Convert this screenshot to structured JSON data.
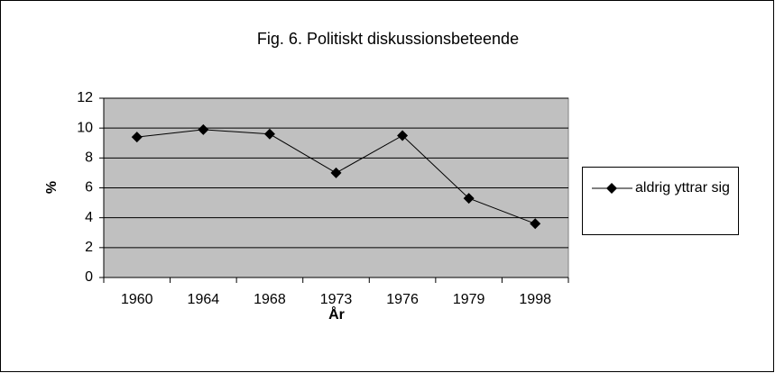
{
  "chart_data": {
    "type": "line",
    "title": "Fig. 6. Politiskt diskussionsbeteende",
    "x_label": "År",
    "y_label": "%",
    "categories": [
      "1960",
      "1964",
      "1968",
      "1973",
      "1976",
      "1979",
      "1998"
    ],
    "series": [
      {
        "name": "aldrig yttrar sig",
        "color": "#000000",
        "values": [
          9.4,
          9.9,
          9.6,
          7.0,
          9.5,
          5.3,
          3.6
        ]
      }
    ],
    "ylim": [
      0,
      12
    ],
    "yticks": [
      0,
      2,
      4,
      6,
      8,
      10,
      12
    ],
    "grid": true,
    "legend": "right"
  }
}
